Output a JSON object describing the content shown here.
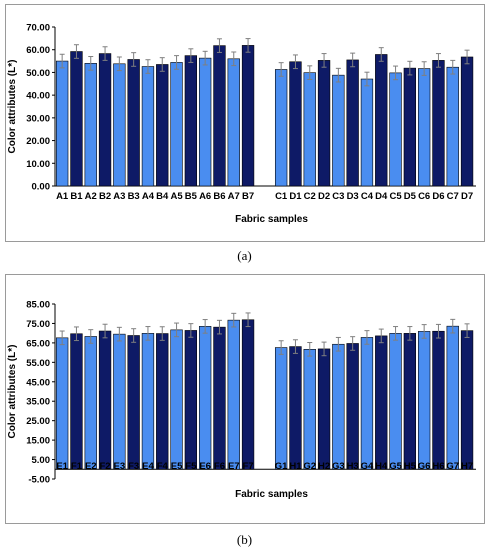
{
  "chart_data": [
    {
      "type": "bar",
      "panel_label": "(a)",
      "xlabel": "Fabric samples",
      "ylabel": "Color attributes (L*)",
      "ylim": [
        0,
        70
      ],
      "yticks": [
        "0.00",
        "10.00",
        "20.00",
        "30.00",
        "40.00",
        "50.00",
        "60.00",
        "70.00"
      ],
      "grid": false,
      "groups": [
        {
          "categories": [
            "A1",
            "B1",
            "A2",
            "B2",
            "A3",
            "B3",
            "A4",
            "B4",
            "A5",
            "B5",
            "A6",
            "B6",
            "A7",
            "B7"
          ],
          "values": [
            55.0,
            59.2,
            54.0,
            58.3,
            53.8,
            55.7,
            52.6,
            53.5,
            54.4,
            57.4,
            56.3,
            61.8,
            56.0,
            61.9
          ],
          "errors": [
            3.0,
            3.0,
            3.0,
            3.0,
            3.0,
            3.0,
            3.0,
            3.0,
            3.0,
            3.0,
            3.0,
            3.0,
            3.0,
            3.0
          ]
        },
        {
          "categories": [
            "C1",
            "D1",
            "C2",
            "D2",
            "C3",
            "D3",
            "C4",
            "D4",
            "C5",
            "D5",
            "C6",
            "D6",
            "C7",
            "D7"
          ],
          "values": [
            51.3,
            54.7,
            49.9,
            55.3,
            48.8,
            55.5,
            47.1,
            57.9,
            49.8,
            51.9,
            51.7,
            55.3,
            52.3,
            56.8
          ],
          "errors": [
            3.0,
            3.0,
            3.0,
            3.0,
            3.0,
            3.0,
            3.0,
            3.0,
            3.0,
            3.0,
            3.0,
            3.0,
            3.0,
            3.0
          ]
        }
      ]
    },
    {
      "type": "bar",
      "panel_label": "(b)",
      "xlabel": "Fabric samples",
      "ylabel": "Color attributes (L*)",
      "ylim": [
        -5,
        85
      ],
      "yticks": [
        "-5.00",
        "5.00",
        "15.00",
        "25.00",
        "35.00",
        "45.00",
        "55.00",
        "65.00",
        "75.00",
        "85.00"
      ],
      "grid": false,
      "groups": [
        {
          "categories": [
            "E1",
            "F1",
            "E2",
            "F2",
            "E3",
            "F3",
            "E4",
            "F4",
            "E5",
            "F5",
            "E6",
            "F6",
            "E7",
            "F7"
          ],
          "values": [
            67.6,
            69.7,
            68.3,
            71.1,
            69.5,
            68.8,
            69.9,
            69.8,
            71.7,
            71.4,
            73.5,
            73.1,
            76.7,
            76.9
          ],
          "errors": [
            3.5,
            3.5,
            3.5,
            3.5,
            3.5,
            3.5,
            3.5,
            3.5,
            3.5,
            3.5,
            3.5,
            3.5,
            3.5,
            3.5
          ]
        },
        {
          "categories": [
            "G1",
            "H1",
            "G2",
            "H2",
            "G3",
            "H3",
            "G4",
            "H4",
            "G5",
            "H5",
            "G6",
            "H6",
            "G7",
            "H7"
          ],
          "values": [
            62.6,
            63.1,
            61.7,
            61.9,
            64.3,
            64.7,
            67.8,
            68.6,
            69.9,
            69.9,
            70.9,
            71.0,
            73.6,
            71.3
          ],
          "errors": [
            3.5,
            3.5,
            3.5,
            3.5,
            3.5,
            3.5,
            3.5,
            3.5,
            3.5,
            3.5,
            3.5,
            3.5,
            3.5,
            3.5
          ]
        }
      ]
    }
  ],
  "colors": {
    "bar_light": "#4a8df0",
    "bar_dark": "#0e1a66",
    "bar_edge": "#000000",
    "axis": "#000000",
    "error_bar": "#7f7f7f",
    "frame": "#9a9a9a"
  }
}
